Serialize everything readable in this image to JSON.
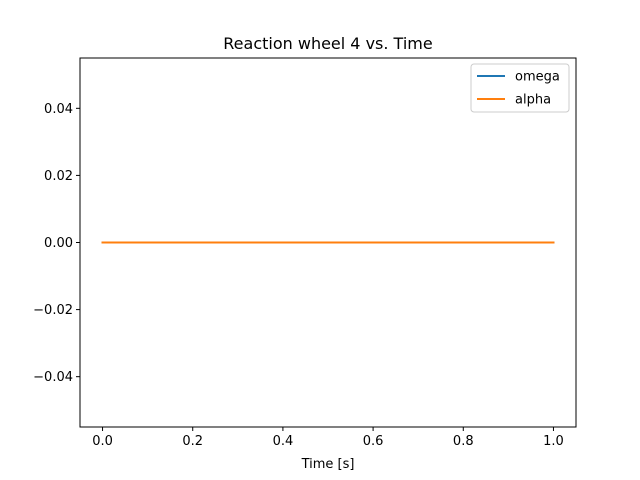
{
  "chart_data": {
    "type": "line",
    "title": "Reaction wheel 4 vs. Time",
    "xlabel": "Time [s]",
    "ylabel": "",
    "xlim": [
      -0.05,
      1.05
    ],
    "ylim": [
      -0.055,
      0.055
    ],
    "x_ticks": [
      0.0,
      0.2,
      0.4,
      0.6,
      0.8,
      1.0
    ],
    "x_tick_labels": [
      "0.0",
      "0.2",
      "0.4",
      "0.6",
      "0.8",
      "1.0"
    ],
    "y_ticks": [
      0.04,
      0.02,
      0.0,
      -0.02,
      -0.04
    ],
    "y_tick_labels": [
      "0.04",
      "0.02",
      "0.00",
      "−0.02",
      "−0.04"
    ],
    "grid": false,
    "legend_position": "top-right",
    "series": [
      {
        "name": "omega",
        "color": "#1f77b4",
        "x": [
          0.0,
          1.0
        ],
        "y": [
          0.0,
          0.0
        ]
      },
      {
        "name": "alpha",
        "color": "#ff7f0e",
        "x": [
          0.0,
          1.0
        ],
        "y": [
          0.0,
          0.0
        ]
      }
    ]
  }
}
